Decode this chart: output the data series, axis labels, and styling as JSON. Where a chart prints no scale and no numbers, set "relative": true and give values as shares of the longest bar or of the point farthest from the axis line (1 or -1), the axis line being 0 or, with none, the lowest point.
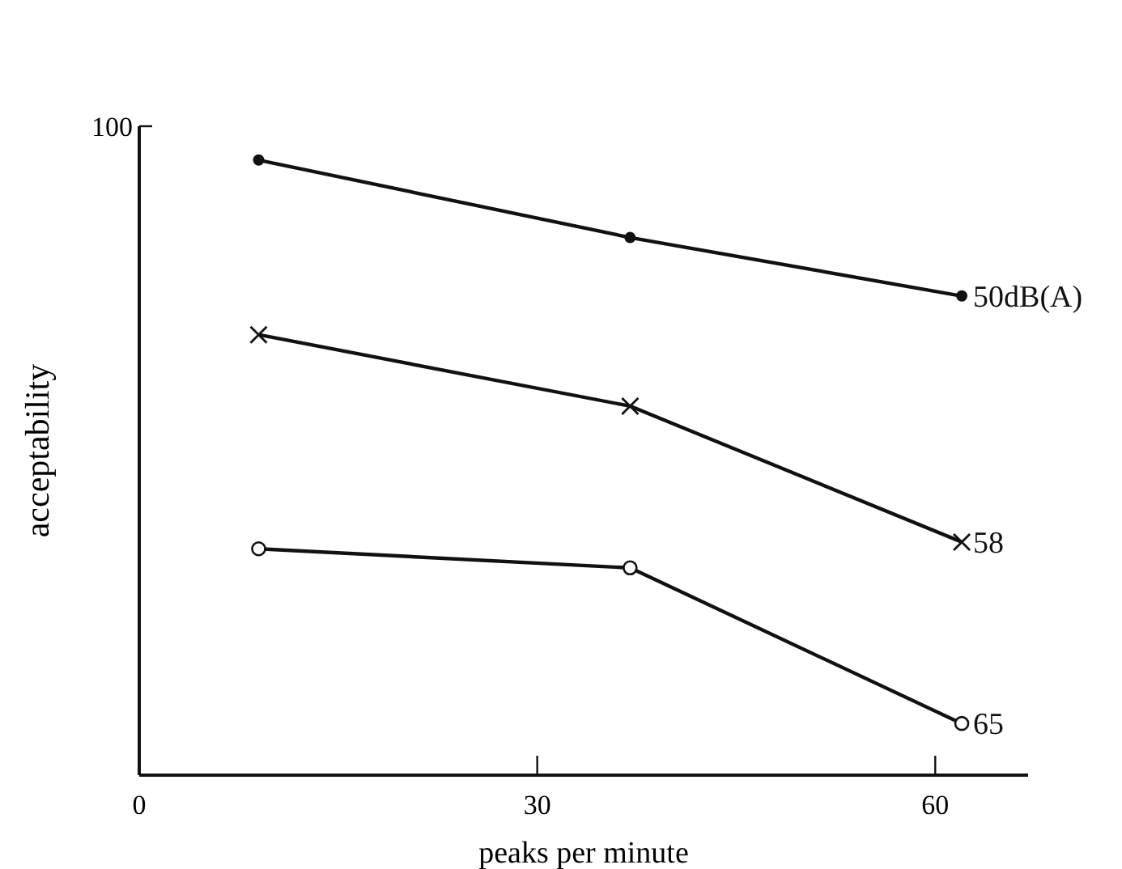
{
  "chart_data": {
    "type": "line",
    "xlabel": "peaks per minute",
    "ylabel": "acceptability",
    "xlim": [
      0,
      67
    ],
    "xticks": [
      0,
      30,
      60
    ],
    "relative": true,
    "grid": false,
    "annotations": [
      "100"
    ],
    "series": [
      {
        "name": "50dB(A)",
        "color": "#111111",
        "marker": "circle",
        "x": [
          9,
          37,
          62
        ],
        "values": [
          1,
          0.874,
          0.779
        ]
      },
      {
        "name": "58",
        "color": "#111111",
        "marker": "cross",
        "x": [
          9,
          37,
          62
        ],
        "values": [
          0.716,
          0.6,
          0.379
        ]
      },
      {
        "name": "65",
        "color": "#111111",
        "marker": "open-circle",
        "x": [
          9,
          37,
          62
        ],
        "values": [
          0.368,
          0.337,
          0.084
        ]
      }
    ]
  }
}
